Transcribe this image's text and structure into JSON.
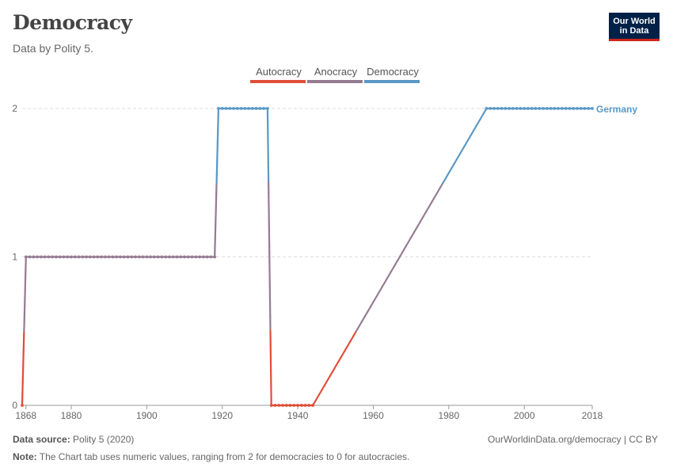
{
  "header": {
    "title": "Democracy",
    "subtitle": "Data by Polity 5.",
    "logo_line1": "Our World",
    "logo_line2": "in Data"
  },
  "footer": {
    "source_label": "Data source:",
    "source_value": "Polity 5 (2020)",
    "url": "OurWorldinData.org/democracy | CC BY",
    "note_label": "Note:",
    "note_value": "The Chart tab uses numeric values, ranging from 2 for democracies to 0 for autocracies."
  },
  "colors": {
    "autocracy": "#e04e38",
    "anocracy": "#967b92",
    "democracy": "#5b98c5",
    "grid": "#dddddd",
    "axis": "#999999"
  },
  "chart_data": {
    "type": "line",
    "title": "Democracy",
    "xlabel": "",
    "ylabel": "",
    "xlim": [
      1867,
      2018
    ],
    "ylim": [
      0,
      2
    ],
    "x_ticks": [
      1868,
      1880,
      1900,
      1920,
      1940,
      1960,
      1980,
      2000,
      2018
    ],
    "y_ticks": [
      0,
      1,
      2
    ],
    "legend": {
      "position": "top",
      "entries": [
        {
          "label": "Autocracy",
          "key": "autocracy"
        },
        {
          "label": "Anocracy",
          "key": "anocracy"
        },
        {
          "label": "Democracy",
          "key": "democracy"
        }
      ]
    },
    "series": [
      {
        "name": "Germany",
        "segments": [
          {
            "x": [
              1867,
              1868
            ],
            "y": [
              0,
              1
            ]
          },
          {
            "x": [
              1868,
              1918
            ],
            "y": [
              1,
              1
            ]
          },
          {
            "x": [
              1918,
              1919
            ],
            "y": [
              1,
              2
            ]
          },
          {
            "x": [
              1919,
              1932
            ],
            "y": [
              2,
              2
            ]
          },
          {
            "x": [
              1932,
              1933
            ],
            "y": [
              2,
              0
            ]
          },
          {
            "x": [
              1933,
              1944
            ],
            "y": [
              0,
              0
            ]
          },
          {
            "x": [
              1944,
              1990
            ],
            "y": [
              0,
              2
            ]
          },
          {
            "x": [
              1990,
              2018
            ],
            "y": [
              2,
              2
            ]
          }
        ],
        "points": [
          {
            "from": 1867,
            "to": 1867,
            "y": 0
          },
          {
            "from": 1868,
            "to": 1918,
            "y": 1
          },
          {
            "from": 1919,
            "to": 1932,
            "y": 2
          },
          {
            "from": 1933,
            "to": 1944,
            "y": 0
          },
          {
            "from": 1990,
            "to": 2018,
            "y": 2
          }
        ]
      }
    ]
  }
}
